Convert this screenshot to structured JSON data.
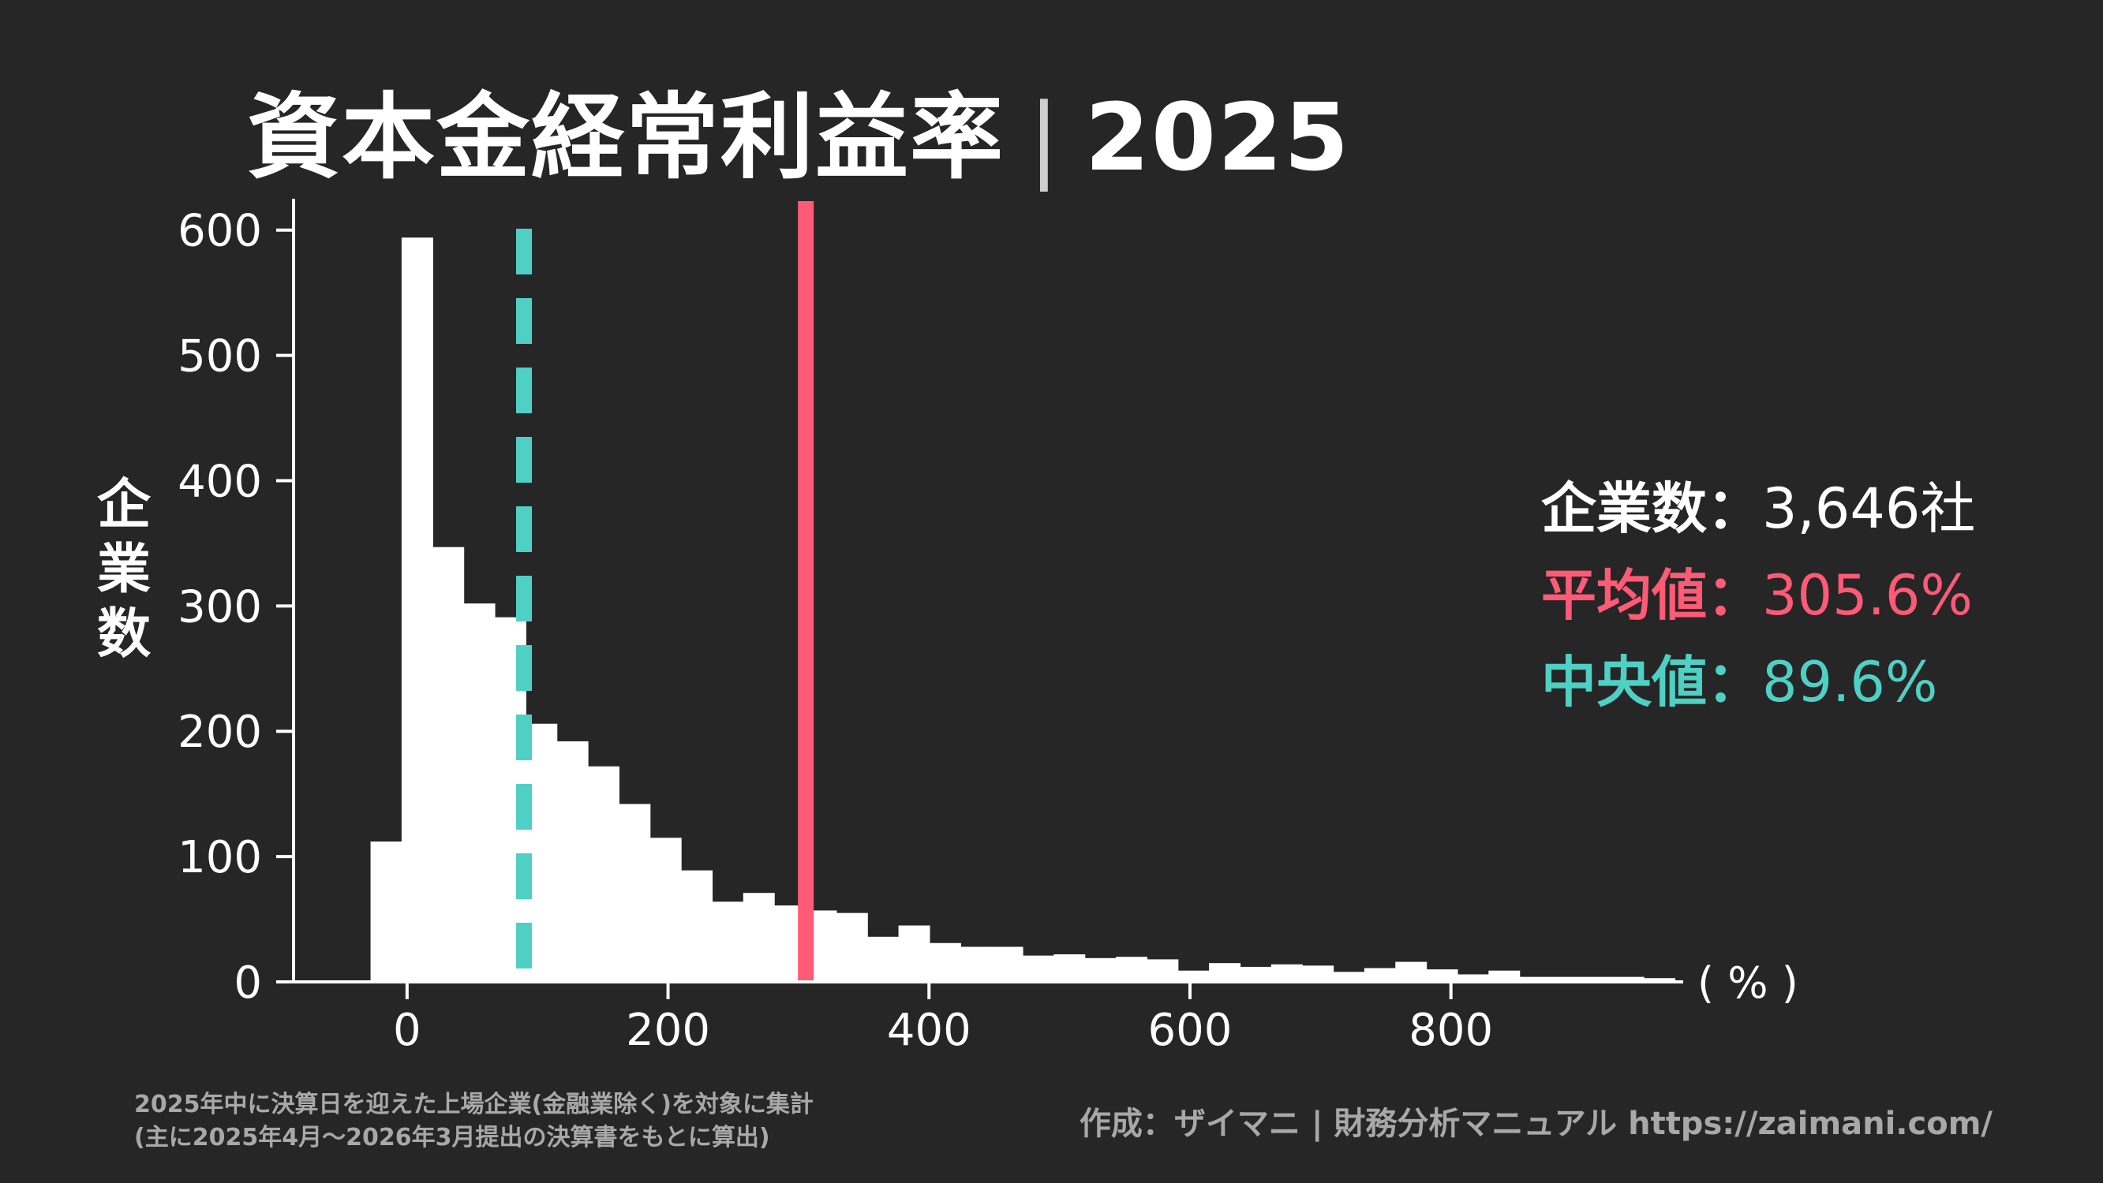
{
  "title": {
    "main": "資本金経常利益率",
    "separator": "|",
    "year": "2025"
  },
  "ylabel": "企業数",
  "stats": [
    {
      "label": "企業数",
      "value": "3,646社",
      "color": "#ffffff"
    },
    {
      "label": "平均値",
      "value": "305.6%",
      "color": "#ff5a76"
    },
    {
      "label": "中央値",
      "value": "89.6%",
      "color": "#4fd0c4"
    }
  ],
  "stat_sep": "：",
  "notes": [
    "2025年中に決算日を迎えた上場企業(金融業除く)を対象に集計",
    "(主に2025年4月〜2026年3月提出の決算書をもとに算出)"
  ],
  "credit": "作成：ザイマニ | 財務分析マニュアル https://zaimani.com/",
  "chart_data": {
    "type": "bar",
    "xlabel": "( % )",
    "ylabel": "企業数",
    "xlim": [
      -87,
      978
    ],
    "ylim": [
      0,
      625
    ],
    "xticks": [
      0,
      200,
      400,
      600,
      800
    ],
    "yticks": [
      0,
      100,
      200,
      300,
      400,
      500,
      600
    ],
    "bin_width": 23.8,
    "bin_start": -28,
    "values": [
      112,
      594,
      347,
      302,
      291,
      206,
      192,
      172,
      142,
      115,
      89,
      64,
      71,
      61,
      57,
      55,
      36,
      45,
      31,
      28,
      28,
      21,
      22,
      19,
      20,
      18,
      9,
      15,
      12,
      14,
      13,
      8,
      11,
      16,
      10,
      6,
      9,
      4,
      4,
      4,
      4,
      3
    ],
    "mean": 305.6,
    "median": 89.6,
    "mean_color": "#ff5a76",
    "median_color": "#4fd0c4",
    "bar_color": "#ffffff",
    "grid": false
  }
}
